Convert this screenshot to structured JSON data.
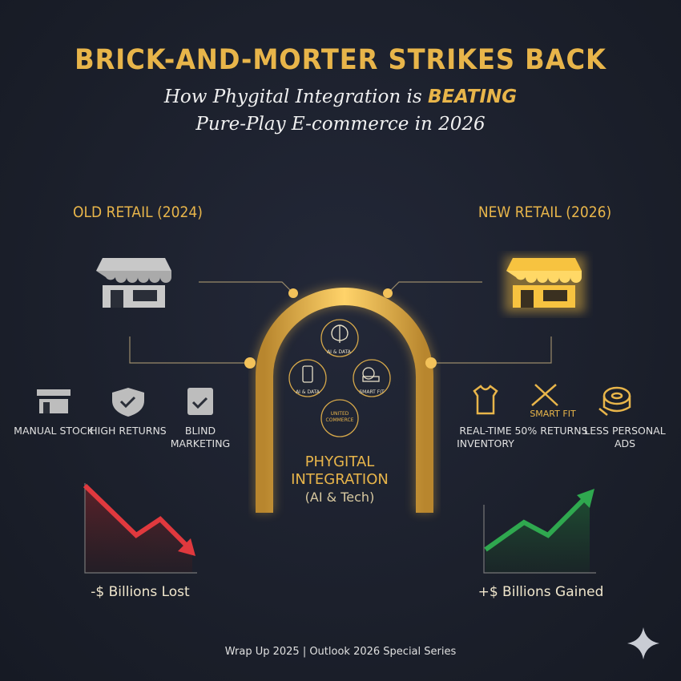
{
  "title": "BRICK-AND-MORTER STRIKES BACK",
  "subtitle": {
    "line1_pre": "How Phygital Integration is ",
    "line1_em": "BEATING",
    "line2": "Pure-Play E-commerce in 2026"
  },
  "old": {
    "heading": "OLD RETAIL (2024)",
    "items": [
      {
        "icon": "store-icon",
        "label": "MANUAL STOCK"
      },
      {
        "icon": "shield-check-icon",
        "label": "HIGH RETURNS"
      },
      {
        "icon": "checklist-icon",
        "label": "BLIND MARKETING"
      }
    ],
    "trend": "down",
    "result": "-$ Billions Lost"
  },
  "new": {
    "heading": "NEW RETAIL (2026)",
    "items": [
      {
        "icon": "shirt-icon",
        "label": "REAL-TIME INVENTORY"
      },
      {
        "icon": "ruler-icon",
        "tag": "SMART FIT",
        "label": "50% RETURNS"
      },
      {
        "icon": "tape-measure-icon",
        "label": "LESS PERSONAL ADS"
      }
    ],
    "trend": "up",
    "result": "+$ Billions Gained"
  },
  "center": {
    "title_line1": "PHYGITAL",
    "title_line2": "INTEGRATION",
    "title_line3": "(AI & Tech)",
    "nodes": [
      {
        "icon": "brain-icon",
        "label": "AI & DATA"
      },
      {
        "icon": "phone-cart-icon",
        "label": "AI & DATA"
      },
      {
        "icon": "tape-measure-icon",
        "label": "SMART FIT"
      },
      {
        "icon": "none",
        "label": "UNITED COMMERCE"
      }
    ]
  },
  "footer": "Wrap Up 2025 | Outlook 2026 Special Series",
  "colors": {
    "gold": "#e8b54a",
    "background": "#1b1f2b",
    "down": "#e0393e",
    "up": "#2fa84f",
    "gray": "#c8c8c8"
  }
}
